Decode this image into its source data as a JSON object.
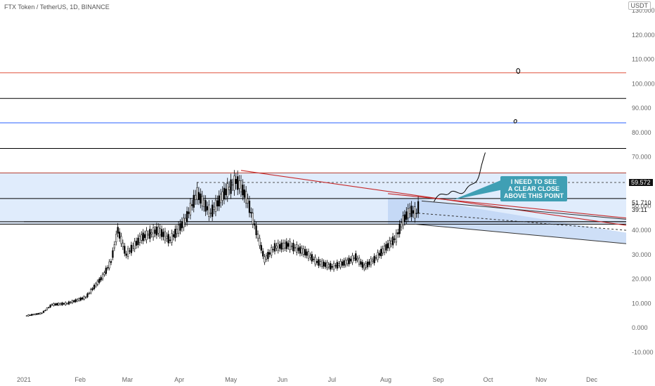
{
  "header": {
    "title": "FTX Token / TetherUS, 1D, BINANCE",
    "currency": "USDT"
  },
  "annotation": {
    "lines": [
      "I NEED TO SEE",
      "A CLEAR CLOSE",
      "ABOVE THIS POINT"
    ],
    "color": "#3f9fb4"
  },
  "price_labels": {
    "level": "59.572",
    "current": "51.710",
    "countdown": "39:11"
  },
  "chart_data": {
    "type": "candlestick",
    "symbol": "FTX Token / TetherUS",
    "interval": "1D",
    "exchange": "BINANCE",
    "ylim": [
      -10000,
      130000
    ],
    "y_ticks": [
      "130.000",
      "120.000",
      "110.000",
      "100.000",
      "90.000",
      "80.000",
      "70.000",
      "60.000",
      "50.000",
      "40.000",
      "30.000",
      "20.000",
      "10.000",
      "0.000",
      "-10.000"
    ],
    "x_ticks": [
      "2021",
      "Feb",
      "Mar",
      "Apr",
      "May",
      "Jun",
      "Jul",
      "Aug",
      "Sep",
      "Oct",
      "Nov",
      "Dec"
    ],
    "close_path": [
      {
        "date": "2021-01-01",
        "value": 5000
      },
      {
        "date": "2021-01-10",
        "value": 6000
      },
      {
        "date": "2021-01-16",
        "value": 9500
      },
      {
        "date": "2021-01-25",
        "value": 10000
      },
      {
        "date": "2021-02-05",
        "value": 12500
      },
      {
        "date": "2021-02-15",
        "value": 21000
      },
      {
        "date": "2021-02-20",
        "value": 27000
      },
      {
        "date": "2021-02-24",
        "value": 40000
      },
      {
        "date": "2021-03-01",
        "value": 30000
      },
      {
        "date": "2021-03-10",
        "value": 37000
      },
      {
        "date": "2021-03-20",
        "value": 40000
      },
      {
        "date": "2021-03-27",
        "value": 36000
      },
      {
        "date": "2021-04-05",
        "value": 44000
      },
      {
        "date": "2021-04-12",
        "value": 55000
      },
      {
        "date": "2021-04-20",
        "value": 47000
      },
      {
        "date": "2021-04-28",
        "value": 55000
      },
      {
        "date": "2021-05-05",
        "value": 60000
      },
      {
        "date": "2021-05-08",
        "value": 58000
      },
      {
        "date": "2021-05-12",
        "value": 52000
      },
      {
        "date": "2021-05-17",
        "value": 40000
      },
      {
        "date": "2021-05-22",
        "value": 28000
      },
      {
        "date": "2021-05-28",
        "value": 33000
      },
      {
        "date": "2021-06-05",
        "value": 34000
      },
      {
        "date": "2021-06-15",
        "value": 31000
      },
      {
        "date": "2021-06-22",
        "value": 27000
      },
      {
        "date": "2021-07-01",
        "value": 25000
      },
      {
        "date": "2021-07-10",
        "value": 27000
      },
      {
        "date": "2021-07-15",
        "value": 29000
      },
      {
        "date": "2021-07-20",
        "value": 25000
      },
      {
        "date": "2021-07-26",
        "value": 28000
      },
      {
        "date": "2021-08-02",
        "value": 33000
      },
      {
        "date": "2021-08-08",
        "value": 37000
      },
      {
        "date": "2021-08-12",
        "value": 44000
      },
      {
        "date": "2021-08-16",
        "value": 48000
      },
      {
        "date": "2021-08-20",
        "value": 47000
      },
      {
        "date": "2021-08-22",
        "value": 51710
      }
    ],
    "horizontal_levels": [
      {
        "value": 104500,
        "color": "#e0533f"
      },
      {
        "value": 94000,
        "color": "#000000"
      },
      {
        "value": 84000,
        "color": "#2962ff"
      },
      {
        "value": 73500,
        "color": "#000000"
      },
      {
        "value": 63500,
        "color": "#b23b2e"
      },
      {
        "value": 53000,
        "color": "#000000"
      },
      {
        "value": 43500,
        "color": "#000000"
      },
      {
        "value": 42500,
        "color": "#000000"
      }
    ],
    "dashed_level": 59572,
    "last_price": 51710,
    "accent_color": "#c62828"
  }
}
